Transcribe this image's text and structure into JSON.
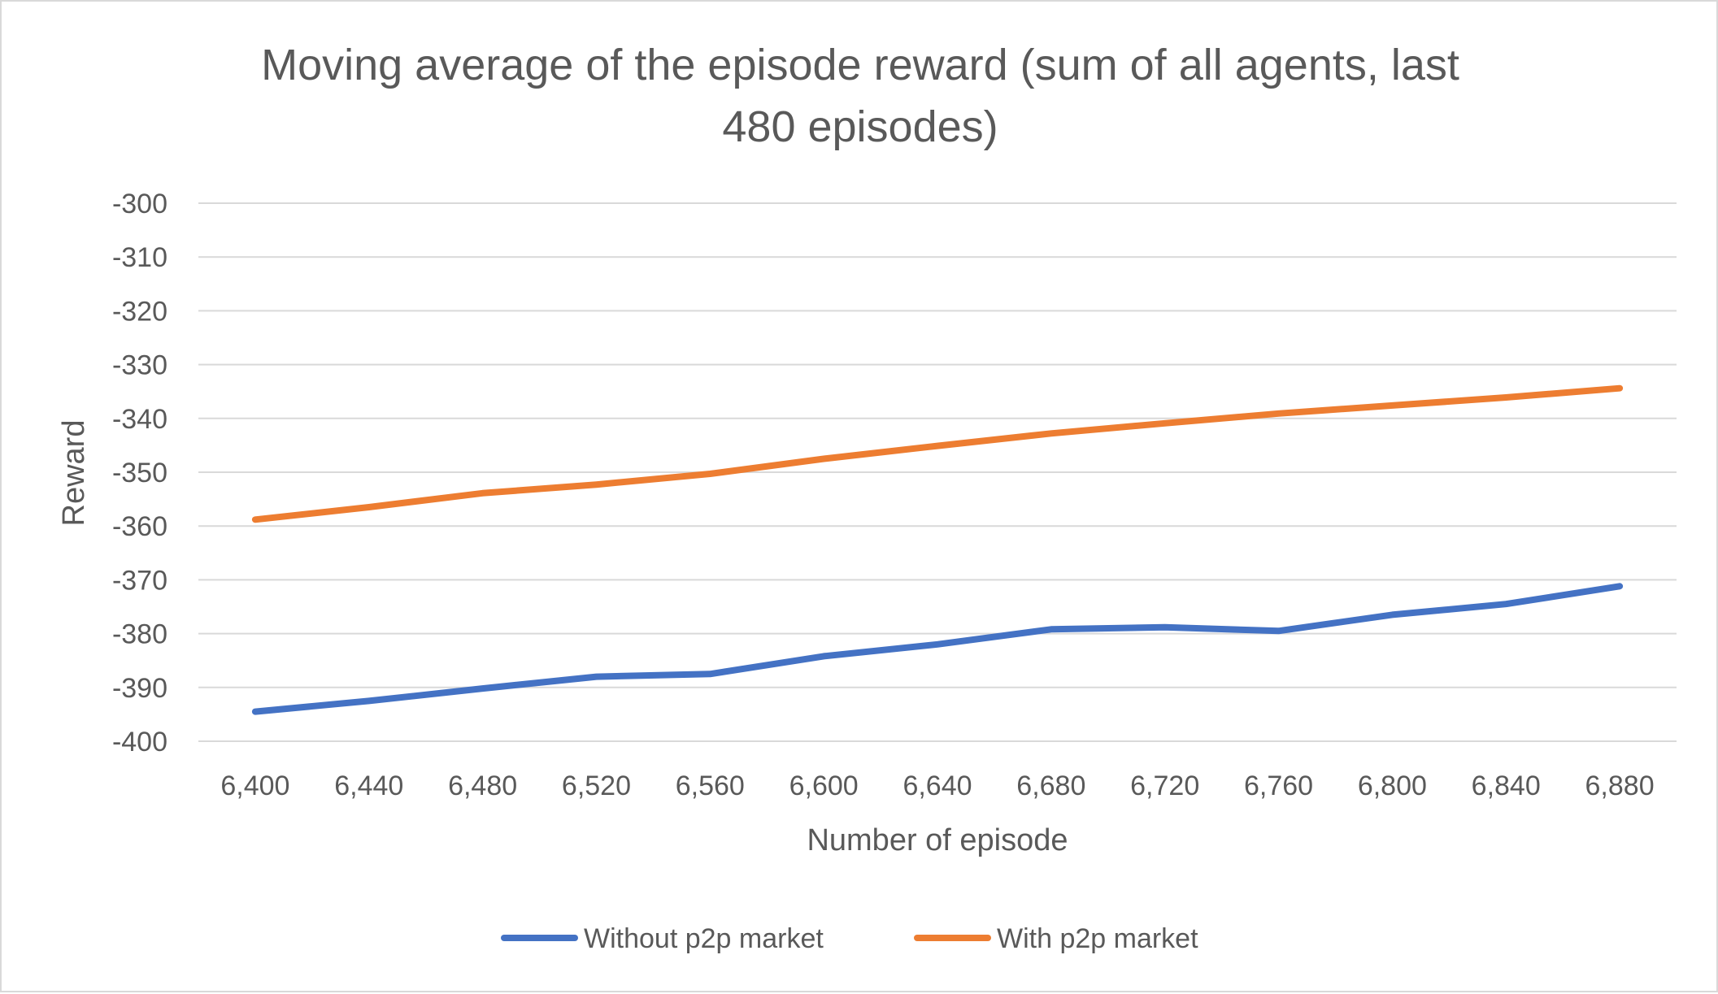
{
  "chart_data": {
    "type": "line",
    "title_lines": [
      "Moving average of the episode reward (sum of all agents, last",
      "480 episodes)"
    ],
    "xlabel": "Number of episode",
    "ylabel": "Reward",
    "categories": [
      "6,400",
      "6,440",
      "6,480",
      "6,520",
      "6,560",
      "6,600",
      "6,640",
      "6,680",
      "6,720",
      "6,760",
      "6,800",
      "6,840",
      "6,880"
    ],
    "ylim": [
      -400,
      -300
    ],
    "yticks": [
      -300,
      -310,
      -320,
      -330,
      -340,
      -350,
      -360,
      -370,
      -380,
      -390,
      -400
    ],
    "grid": true,
    "legend_position": "bottom",
    "series": [
      {
        "name": "Without p2p market",
        "color": "#4472C4",
        "values": [
          -394.5,
          -392.5,
          -390.2,
          -388,
          -387.5,
          -384.2,
          -382,
          -379.2,
          -378.8,
          -379.5,
          -376.5,
          -374.5,
          -371.2
        ]
      },
      {
        "name": "With p2p market",
        "color": "#ED7D31",
        "values": [
          -358.8,
          -356.5,
          -353.9,
          -352.3,
          -350.3,
          -347.5,
          -345.1,
          -342.8,
          -340.9,
          -339.1,
          -337.6,
          -336.1,
          -334.4
        ]
      }
    ]
  }
}
